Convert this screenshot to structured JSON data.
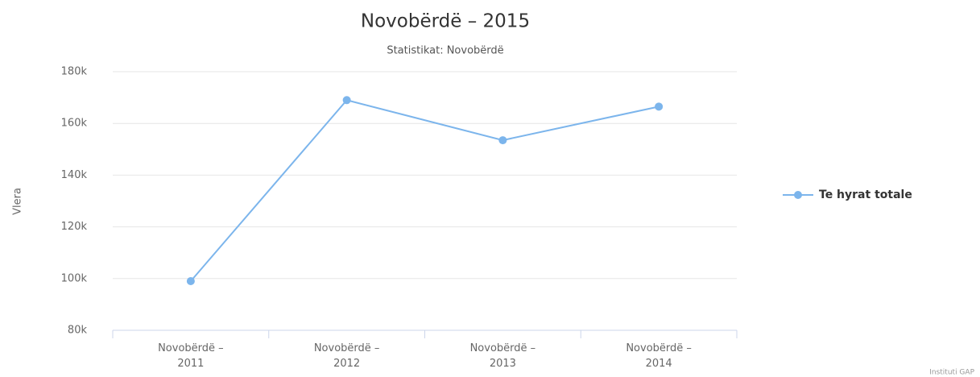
{
  "chart_data": {
    "type": "line",
    "title": "Novobërdë – 2015",
    "subtitle": "Statistikat: Novobërdë",
    "y_label": "Vlera",
    "credits": "Instituti GAP",
    "categories": [
      "Novobërdë – 2011",
      "Novobërdë – 2012",
      "Novobërdë – 2013",
      "Novobërdë – 2014"
    ],
    "series": [
      {
        "name": "Te hyrat totale",
        "color": "#7cb5ec",
        "values": [
          99000,
          169000,
          153500,
          166500
        ]
      }
    ],
    "ylim": [
      80000,
      180000
    ],
    "yticks": [
      {
        "value": 80000,
        "label": "80k"
      },
      {
        "value": 100000,
        "label": "100k"
      },
      {
        "value": 120000,
        "label": "120k"
      },
      {
        "value": 140000,
        "label": "140k"
      },
      {
        "value": 160000,
        "label": "160k"
      },
      {
        "value": 180000,
        "label": "180k"
      }
    ],
    "grid": true,
    "legend": "right"
  }
}
